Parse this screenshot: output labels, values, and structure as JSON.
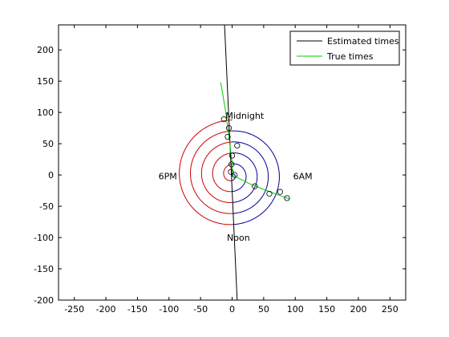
{
  "chart_data": {
    "type": "scatter",
    "xlim": [
      -275,
      275
    ],
    "ylim": [
      -200,
      240
    ],
    "x_ticks": [
      -250,
      -200,
      -150,
      -100,
      -50,
      0,
      50,
      100,
      150,
      200,
      250
    ],
    "y_ticks": [
      -200,
      -150,
      -100,
      -50,
      0,
      50,
      100,
      150,
      200
    ],
    "grid": false,
    "legend_placement": "top-right",
    "legend": [
      {
        "label": "Estimated times",
        "color": "#000000"
      },
      {
        "label": "True times",
        "color": "#00cc00"
      }
    ],
    "annotations": [
      {
        "text": "Midnight",
        "x": 20,
        "y": 95
      },
      {
        "text": "6AM",
        "x": 112,
        "y": -2
      },
      {
        "text": "Noon",
        "x": 10,
        "y": -100
      },
      {
        "text": "6PM",
        "x": -102,
        "y": -2
      }
    ],
    "spiral": {
      "turns": 5,
      "max_radius": 88,
      "colors": {
        "night_to_noon": "#000099",
        "noon_to_night": "#cc0000"
      }
    },
    "estimated_line": [
      [
        -12,
        240
      ],
      [
        8,
        -200
      ]
    ],
    "true_times_line": [
      [
        -18,
        148
      ],
      [
        -10,
        100
      ],
      [
        -5,
        60
      ],
      [
        0,
        20
      ],
      [
        0,
        0
      ],
      [
        30,
        -15
      ],
      [
        60,
        -27
      ],
      [
        90,
        -38
      ]
    ],
    "points": [
      [
        -13,
        89
      ],
      [
        -5,
        75
      ],
      [
        -7,
        61
      ],
      [
        8,
        47
      ],
      [
        0,
        31
      ],
      [
        -1,
        17
      ],
      [
        -2,
        5
      ],
      [
        4,
        0
      ],
      [
        59,
        -30
      ],
      [
        76,
        -27
      ],
      [
        87,
        -37
      ],
      [
        36,
        -18
      ]
    ]
  }
}
